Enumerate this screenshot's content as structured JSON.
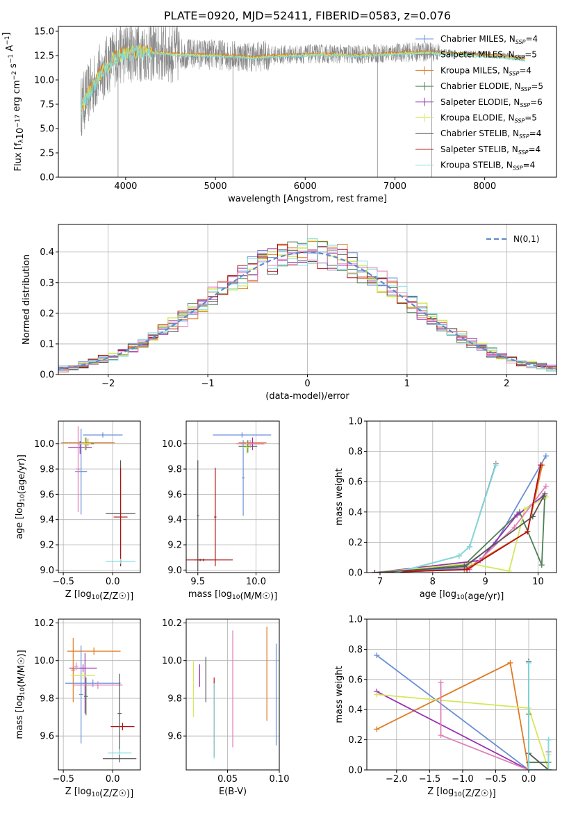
{
  "page": {
    "width": 819,
    "height": 1170
  },
  "palette": {
    "Chabrier MILES": "#6a8fd8",
    "Salpeter MILES": "#888888",
    "Kroupa MILES": "#e07b20",
    "Chabrier ELODIE": "#4f7f55",
    "Salpeter ELODIE": "#9a2fb0",
    "Kroupa ELODIE": "#d4e85a",
    "Chabrier STELIB": "#555555",
    "Salpeter STELIB": "#b11010",
    "Kroupa STELIB": "#7fdbe0",
    "extra": "#e07fb8"
  },
  "chart_data": [
    {
      "id": "spectrum",
      "type": "line",
      "title": "PLATE=0920, MJD=52411, FIBERID=0583, z=0.076",
      "xlabel": "wavelength [Angstrom, rest frame]",
      "ylabel": "Flux [f_λ10^-17 erg cm^-2 s^-1 A^-1]",
      "xlim": [
        3250,
        8800
      ],
      "ylim": [
        0,
        15.5
      ],
      "xticks": [
        4000,
        5000,
        6000,
        7000,
        8000
      ],
      "yticks": [
        0.0,
        2.5,
        5.0,
        7.5,
        10.0,
        12.5,
        15.0
      ],
      "grid": false,
      "legend_position": "right",
      "data_range": [
        3500,
        8450
      ],
      "continuum": {
        "x": [
          3500,
          3700,
          3900,
          4100,
          4300,
          4600,
          5000,
          5400,
          5800,
          6200,
          6600,
          7000,
          7400,
          7800,
          8200,
          8450
        ],
        "y": [
          7.2,
          10.5,
          12.6,
          13.0,
          12.9,
          12.7,
          12.6,
          12.4,
          12.6,
          12.7,
          12.6,
          12.8,
          12.9,
          12.7,
          12.5,
          12.2
        ]
      },
      "spikes": [
        {
          "x": 3915,
          "y": 0.0
        },
        {
          "x": 5195,
          "y": 0.0
        },
        {
          "x": 6805,
          "y": 0.0
        },
        {
          "x": 7410,
          "y": 0.0
        }
      ],
      "series": [
        {
          "name": "Chabrier MILES, N_SSP=4",
          "color": "#6a8fd8",
          "style": "plus"
        },
        {
          "name": "Salpeter MILES, N_SSP=5",
          "color": "#888888",
          "style": "plus"
        },
        {
          "name": "Kroupa MILES, N_SSP=4",
          "color": "#e07b20",
          "style": "plus"
        },
        {
          "name": "Chabrier ELODIE, N_SSP=5",
          "color": "#4f7f55",
          "style": "plus"
        },
        {
          "name": "Salpeter ELODIE, N_SSP=6",
          "color": "#9a2fb0",
          "style": "plus"
        },
        {
          "name": "Kroupa ELODIE, N_SSP=5",
          "color": "#d4e85a",
          "style": "plus"
        },
        {
          "name": "Chabrier STELIB, N_SSP=4",
          "color": "#555555",
          "style": "line"
        },
        {
          "name": "Salpeter STELIB, N_SSP=4",
          "color": "#b11010",
          "style": "line"
        },
        {
          "name": "Kroupa STELIB, N_SSP=4",
          "color": "#7fdbe0",
          "style": "line"
        }
      ]
    },
    {
      "id": "residuals",
      "type": "line",
      "xlabel": "(data-model)/error",
      "ylabel": "Normed distribution",
      "xlim": [
        -2.5,
        2.5
      ],
      "ylim": [
        0,
        0.49
      ],
      "xticks": [
        -2,
        -1,
        0,
        1,
        2
      ],
      "yticks": [
        0.0,
        0.1,
        0.2,
        0.3,
        0.4
      ],
      "grid": true,
      "legend_position": "top-right",
      "legend": "N(0,1)",
      "bin_width": 0.1,
      "bin_start": -2.5,
      "base": [
        0.018,
        0.022,
        0.026,
        0.031,
        0.036,
        0.043,
        0.049,
        0.057,
        0.066,
        0.077,
        0.088,
        0.101,
        0.114,
        0.129,
        0.144,
        0.16,
        0.177,
        0.194,
        0.212,
        0.231,
        0.249,
        0.268,
        0.286,
        0.304,
        0.321,
        0.337,
        0.352,
        0.366,
        0.378,
        0.388,
        0.396,
        0.402,
        0.406,
        0.408,
        0.407,
        0.404,
        0.398,
        0.391,
        0.381,
        0.37,
        0.357,
        0.343,
        0.328,
        0.312,
        0.295,
        0.277,
        0.259,
        0.241,
        0.223,
        0.205,
        0.188,
        0.171,
        0.155,
        0.14,
        0.125,
        0.112,
        0.099,
        0.087,
        0.076,
        0.066,
        0.057,
        0.049,
        0.042,
        0.036,
        0.031,
        0.026,
        0.022,
        0.019,
        0.016,
        0.014,
        0.012,
        0.01,
        0.009,
        0.008,
        0.007,
        0.006,
        0.005,
        0.004,
        0.004,
        0.003,
        0.003,
        0.002,
        0.002,
        0.002,
        0.001,
        0.001,
        0.001,
        0.001,
        0.001,
        0.001,
        0.001,
        0.001,
        0.001,
        0.001,
        0.001,
        0.001,
        0.001,
        0.001,
        0.001,
        0.001
      ],
      "series_colors": [
        "#6a8fd8",
        "#e07b20",
        "#4f7f55",
        "#9a2fb0",
        "#d4e85a",
        "#555555",
        "#b11010",
        "#7fdbe0",
        "#e07fb8"
      ]
    },
    {
      "id": "age-vs-Z",
      "type": "scatter",
      "xlabel": "Z [log10(Z/Z☉)]",
      "ylabel": "age [log10(age/yr)]",
      "xlim": [
        -0.55,
        0.28
      ],
      "ylim": [
        8.98,
        10.18
      ],
      "xticks": [
        -0.5,
        0.0
      ],
      "yticks": [
        9.0,
        9.2,
        9.4,
        9.6,
        9.8,
        10.0
      ],
      "grid": true,
      "points": [
        {
          "x": -0.1,
          "y": 10.07,
          "xerr": 0.2,
          "yerr": 0.02,
          "color": "#6a8fd8"
        },
        {
          "x": -0.25,
          "y": 10.01,
          "xerr": 0.27,
          "yerr": 0.03,
          "color": "#e07b20"
        },
        {
          "x": -0.27,
          "y": 10.0,
          "xerr": 0.08,
          "yerr": 0.05,
          "color": "#4f7f55"
        },
        {
          "x": -0.33,
          "y": 9.97,
          "xerr": 0.12,
          "yerr": 0.05,
          "color": "#9a2fb0"
        },
        {
          "x": -0.32,
          "y": 9.78,
          "xerr": 0.06,
          "yerr": 0.34,
          "color": "#6a8fd8"
        },
        {
          "x": -0.35,
          "y": 9.8,
          "xerr": 0.02,
          "yerr": 0.34,
          "color": "#e07fb8"
        },
        {
          "x": -0.28,
          "y": 10.0,
          "xerr": 0.06,
          "yerr": 0.05,
          "color": "#d4e85a"
        },
        {
          "x": 0.08,
          "y": 9.45,
          "xerr": 0.15,
          "yerr": 0.42,
          "color": "#555555"
        },
        {
          "x": 0.08,
          "y": 9.42,
          "xerr": 0.07,
          "yerr": 0.39,
          "color": "#b11010"
        },
        {
          "x": 0.08,
          "y": 9.07,
          "xerr": 0.15,
          "yerr": 0.02,
          "color": "#7fdbe0"
        }
      ]
    },
    {
      "id": "age-vs-mass",
      "type": "scatter",
      "xlabel": "mass [log10(M/M☉)]",
      "ylabel": "",
      "xlim": [
        9.4,
        10.2
      ],
      "ylim": [
        8.98,
        10.18
      ],
      "xticks": [
        9.5,
        10.0
      ],
      "yticks": [
        9.0,
        9.2,
        9.4,
        9.6,
        9.8,
        10.0
      ],
      "grid": true,
      "points": [
        {
          "x": 9.88,
          "y": 10.07,
          "xerr": 0.25,
          "yerr": 0.02,
          "color": "#6a8fd8"
        },
        {
          "x": 9.97,
          "y": 10.01,
          "xerr": 0.12,
          "yerr": 0.03,
          "color": "#e07b20"
        },
        {
          "x": 9.93,
          "y": 9.98,
          "xerr": 0.08,
          "yerr": 0.05,
          "color": "#4f7f55"
        },
        {
          "x": 9.97,
          "y": 10.0,
          "xerr": 0.1,
          "yerr": 0.05,
          "color": "#9a2fb0"
        },
        {
          "x": 9.89,
          "y": 9.73,
          "xerr": 0.01,
          "yerr": 0.3,
          "color": "#6a8fd8"
        },
        {
          "x": 9.95,
          "y": 10.0,
          "xerr": 0.12,
          "yerr": 0.03,
          "color": "#e07fb8"
        },
        {
          "x": 9.92,
          "y": 9.97,
          "xerr": 0.04,
          "yerr": 0.05,
          "color": "#d4e85a"
        },
        {
          "x": 9.5,
          "y": 9.43,
          "xerr": 0.01,
          "yerr": 0.44,
          "color": "#555555"
        },
        {
          "x": 9.65,
          "y": 9.42,
          "xerr": 0.01,
          "yerr": 0.39,
          "color": "#b11010"
        },
        {
          "x": 9.55,
          "y": 9.08,
          "xerr": 0.08,
          "yerr": 0.01,
          "color": "#7fdbe0"
        },
        {
          "x": 9.52,
          "y": 9.08,
          "xerr": 0.03,
          "yerr": 0.01,
          "color": "#555555"
        },
        {
          "x": 9.55,
          "y": 9.08,
          "xerr": 0.25,
          "yerr": 0.01,
          "color": "#b11010"
        }
      ]
    },
    {
      "id": "massweight-vs-age",
      "type": "line",
      "xlabel": "age [log10(age/yr)]",
      "ylabel": "mass weight",
      "xlim": [
        6.75,
        10.35
      ],
      "ylim": [
        0.0,
        1.0
      ],
      "xticks": [
        7,
        8,
        9,
        10
      ],
      "yticks": [
        0.0,
        0.2,
        0.4,
        0.6,
        0.8,
        1.0
      ],
      "grid": true,
      "series": [
        {
          "color": "#6a8fd8",
          "x": [
            6.9,
            8.6,
            9.2,
            10.15
          ],
          "y": [
            0.0,
            0.03,
            0.2,
            0.77
          ]
        },
        {
          "color": "#e07b20",
          "x": [
            6.9,
            8.6,
            9.8,
            10.08
          ],
          "y": [
            0.0,
            0.02,
            0.27,
            0.71
          ]
        },
        {
          "color": "#4f7f55",
          "x": [
            6.9,
            8.6,
            9.65,
            10.07,
            10.13
          ],
          "y": [
            0.0,
            0.05,
            0.4,
            0.05,
            0.52
          ]
        },
        {
          "color": "#9a2fb0",
          "x": [
            6.9,
            8.9,
            9.6,
            10.12
          ],
          "y": [
            0.0,
            0.08,
            0.38,
            0.51
          ]
        },
        {
          "color": "#d4e85a",
          "x": [
            6.9,
            8.7,
            9.45,
            9.75,
            10.15
          ],
          "y": [
            0.0,
            0.06,
            0.01,
            0.42,
            0.5
          ]
        },
        {
          "color": "#e07fb8",
          "x": [
            6.9,
            8.7,
            9.55,
            10.15
          ],
          "y": [
            0.0,
            0.02,
            0.3,
            0.57
          ]
        },
        {
          "color": "#b11010",
          "x": [
            6.9,
            8.65,
            9.8,
            10.05
          ],
          "y": [
            0.0,
            0.02,
            0.27,
            0.71
          ]
        },
        {
          "color": "#888888",
          "x": [
            7.3,
            8.5,
            8.7,
            9.2
          ],
          "y": [
            0.0,
            0.11,
            0.17,
            0.72
          ]
        },
        {
          "color": "#7fdbe0",
          "x": [
            7.3,
            8.5,
            8.7,
            9.2
          ],
          "y": [
            0.0,
            0.11,
            0.17,
            0.71
          ]
        },
        {
          "color": "#555555",
          "x": [
            6.9,
            8.6,
            9.9,
            10.1
          ],
          "y": [
            0.0,
            0.04,
            0.37,
            0.5
          ]
        }
      ]
    },
    {
      "id": "mass-vs-Z",
      "type": "scatter",
      "xlabel": "Z [log10(Z/Z☉)]",
      "ylabel": "mass [log10(M/M☉)]",
      "xlim": [
        -0.55,
        0.28
      ],
      "ylim": [
        9.42,
        10.22
      ],
      "xticks": [
        -0.5,
        0.0
      ],
      "yticks": [
        9.6,
        9.8,
        10.0,
        10.2
      ],
      "grid": true,
      "points": [
        {
          "x": -0.4,
          "y": 9.95,
          "xerr": 0.02,
          "yerr": 0.17,
          "color": "#e07b20"
        },
        {
          "x": -0.19,
          "y": 10.05,
          "xerr": 0.27,
          "yerr": 0.02,
          "color": "#e07b20"
        },
        {
          "x": -0.32,
          "y": 9.82,
          "xerr": 0.02,
          "yerr": 0.26,
          "color": "#6a8fd8"
        },
        {
          "x": -0.28,
          "y": 9.88,
          "xerr": 0.02,
          "yerr": 0.16,
          "color": "#9a2fb0"
        },
        {
          "x": -0.3,
          "y": 9.96,
          "xerr": 0.14,
          "yerr": 0.02,
          "color": "#9a2fb0"
        },
        {
          "x": -0.27,
          "y": 9.81,
          "xerr": 0.02,
          "yerr": 0.1,
          "color": "#4f7f55"
        },
        {
          "x": -0.37,
          "y": 9.97,
          "xerr": 0.02,
          "yerr": 0.02,
          "color": "#e07fb8"
        },
        {
          "x": -0.3,
          "y": 9.92,
          "xerr": 0.12,
          "yerr": 0.02,
          "color": "#d4e85a"
        },
        {
          "x": -0.2,
          "y": 9.88,
          "xerr": 0.28,
          "yerr": 0.02,
          "color": "#6a8fd8"
        },
        {
          "x": -0.15,
          "y": 9.87,
          "xerr": 0.25,
          "yerr": 0.02,
          "color": "#e07fb8"
        },
        {
          "x": 0.1,
          "y": 9.65,
          "xerr": 0.12,
          "yerr": 0.02,
          "color": "#b11010"
        },
        {
          "x": 0.07,
          "y": 9.72,
          "xerr": 0.02,
          "yerr": 0.21,
          "color": "#555555"
        },
        {
          "x": 0.07,
          "y": 9.51,
          "xerr": 0.12,
          "yerr": 0.02,
          "color": "#7fdbe0"
        },
        {
          "x": 0.07,
          "y": 9.48,
          "xerr": 0.17,
          "yerr": 0.02,
          "color": "#555555"
        }
      ]
    },
    {
      "id": "mass-vs-EBV",
      "type": "scatter",
      "xlabel": "E(B-V)",
      "ylabel": "",
      "xlim": [
        0.01,
        0.1
      ],
      "ylim": [
        9.42,
        10.22
      ],
      "xticks": [
        0.05,
        0.1
      ],
      "xtick_labels": [
        "0.05",
        "0.10"
      ],
      "yticks": [
        9.6,
        9.8,
        10.0,
        10.2
      ],
      "grid": true,
      "points": [
        {
          "x": 0.017,
          "y": 9.85,
          "xerr": 0.0,
          "yerr": 0.15,
          "color": "#d4e85a"
        },
        {
          "x": 0.023,
          "y": 9.92,
          "xerr": 0.0,
          "yerr": 0.06,
          "color": "#9a2fb0"
        },
        {
          "x": 0.029,
          "y": 9.9,
          "xerr": 0.0,
          "yerr": 0.12,
          "color": "#555555"
        },
        {
          "x": 0.037,
          "y": 9.7,
          "xerr": 0.0,
          "yerr": 0.21,
          "color": "#b11010"
        },
        {
          "x": 0.037,
          "y": 9.68,
          "xerr": 0.0,
          "yerr": 0.2,
          "color": "#7fdbe0"
        },
        {
          "x": 0.055,
          "y": 9.85,
          "xerr": 0.0,
          "yerr": 0.31,
          "color": "#e07fb8"
        },
        {
          "x": 0.088,
          "y": 9.93,
          "xerr": 0.0,
          "yerr": 0.25,
          "color": "#e07b20"
        },
        {
          "x": 0.097,
          "y": 9.82,
          "xerr": 0.0,
          "yerr": 0.27,
          "color": "#6a8fd8"
        }
      ]
    },
    {
      "id": "massweight-vs-Z",
      "type": "line",
      "xlabel": "Z [log10(Z/Z☉)]",
      "ylabel": "mass weight",
      "xlim": [
        -2.45,
        0.42
      ],
      "ylim": [
        0.0,
        1.0
      ],
      "xticks": [
        -2.0,
        -1.5,
        -1.0,
        -0.5,
        0.0
      ],
      "xtick_labels": [
        "−2.0",
        "−1.5",
        "−1.0",
        "−0.5",
        "0.0"
      ],
      "yticks": [
        0.0,
        0.2,
        0.4,
        0.6,
        0.8,
        1.0
      ],
      "grid": true,
      "series": [
        {
          "color": "#6a8fd8",
          "x": [
            -2.3,
            0.0,
            0.3,
            0.3
          ],
          "y": [
            0.76,
            0.0,
            0.0,
            0.2
          ]
        },
        {
          "color": "#e07b20",
          "x": [
            -2.3,
            -0.28,
            0.0,
            0.3
          ],
          "y": [
            0.27,
            0.71,
            0.0,
            0.0
          ]
        },
        {
          "color": "#9a2fb0",
          "x": [
            -2.3,
            0.0,
            0.3
          ],
          "y": [
            0.52,
            0.0,
            0.0
          ]
        },
        {
          "color": "#d4e85a",
          "x": [
            -2.3,
            0.0,
            0.3,
            0.3
          ],
          "y": [
            0.5,
            0.41,
            0.0,
            0.1
          ]
        },
        {
          "color": "#4f7f55",
          "x": [
            0.0,
            0.0,
            0.3
          ],
          "y": [
            0.37,
            0.05,
            0.05
          ]
        },
        {
          "color": "#e07fb8",
          "x": [
            -1.33,
            -1.33,
            0.0,
            0.3,
            0.3
          ],
          "y": [
            0.58,
            0.23,
            0.0,
            0.0,
            0.12
          ]
        },
        {
          "color": "#555555",
          "x": [
            0.0,
            0.0,
            0.3
          ],
          "y": [
            0.72,
            0.11,
            0.0
          ]
        },
        {
          "color": "#b11010",
          "x": [
            0.0,
            0.3
          ],
          "y": [
            0.0,
            0.0
          ]
        },
        {
          "color": "#7fdbe0",
          "x": [
            0.0,
            0.0,
            0.3,
            0.3
          ],
          "y": [
            0.71,
            0.0,
            0.0,
            0.2
          ]
        }
      ]
    }
  ]
}
